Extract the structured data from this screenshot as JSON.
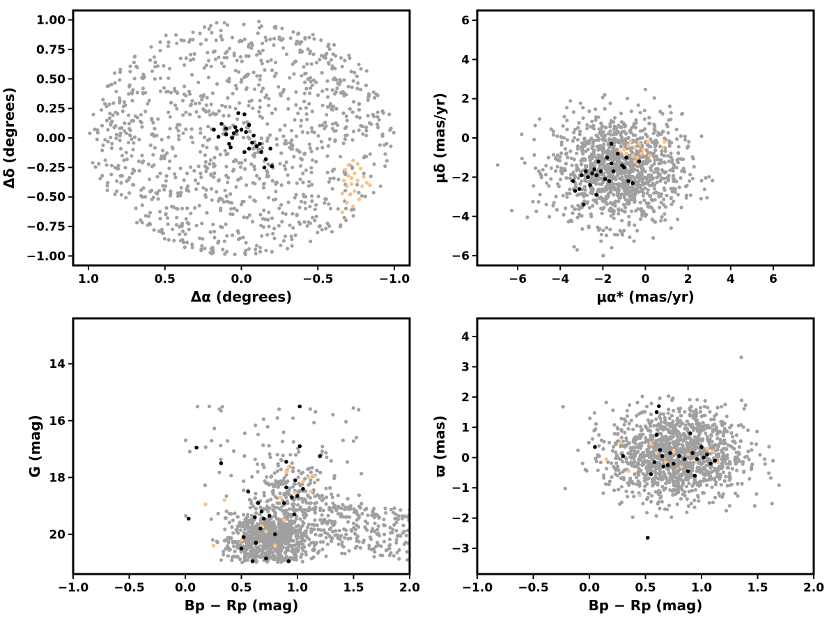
{
  "colors": {
    "field": "#a0a0a0",
    "members": "#000000",
    "group2": "#f9c48c",
    "frame": "#000000"
  },
  "chart_data": [
    {
      "id": "sky",
      "type": "scatter",
      "title": "",
      "xlabel": "Δα (degrees)",
      "ylabel": "Δδ (degrees)",
      "xlim": [
        1.1,
        -1.1
      ],
      "ylim": [
        -1.08,
        1.08
      ],
      "x_inverted": true,
      "xticks": [
        1.0,
        0.5,
        0.0,
        -0.5,
        -1.0
      ],
      "xtick_labels": [
        "1.0",
        "0.5",
        "0.0",
        "−0.5",
        "−1.0"
      ],
      "yticks": [
        -1.0,
        -0.75,
        -0.5,
        -0.25,
        0.0,
        0.25,
        0.5,
        0.75,
        1.0
      ],
      "ytick_labels": [
        "−1.00",
        "−0.75",
        "−0.50",
        "−0.25",
        "0.00",
        "0.25",
        "0.50",
        "0.75",
        "1.00"
      ],
      "grid": false,
      "field_distribution": {
        "shape": "disk",
        "center": [
          0,
          0
        ],
        "radius": 1.0,
        "n": 1100
      },
      "series": [
        {
          "role": "members",
          "points": [
            [
              0.18,
              0.07
            ],
            [
              0.15,
              0.01
            ],
            [
              0.13,
              0.12
            ],
            [
              0.1,
              0.08
            ],
            [
              0.1,
              0.03
            ],
            [
              0.08,
              -0.05
            ],
            [
              0.07,
              -0.08
            ],
            [
              0.06,
              0.0
            ],
            [
              0.05,
              0.04
            ],
            [
              0.04,
              0.09
            ],
            [
              0.03,
              0.06
            ],
            [
              0.02,
              0.21
            ],
            [
              0.0,
              0.07
            ],
            [
              -0.02,
              0.2
            ],
            [
              -0.02,
              -0.12
            ],
            [
              -0.03,
              0.05
            ],
            [
              -0.05,
              -0.09
            ],
            [
              -0.05,
              0.11
            ],
            [
              -0.07,
              -0.04
            ],
            [
              -0.08,
              0.02
            ],
            [
              -0.1,
              -0.07
            ],
            [
              -0.12,
              -0.05
            ],
            [
              -0.13,
              -0.12
            ],
            [
              -0.15,
              -0.25
            ],
            [
              -0.16,
              -0.18
            ],
            [
              -0.19,
              -0.09
            ],
            [
              -0.2,
              -0.24
            ]
          ]
        },
        {
          "role": "group2",
          "points": [
            [
              -0.66,
              -0.63
            ],
            [
              -0.66,
              -0.47
            ],
            [
              -0.67,
              -0.36
            ],
            [
              -0.68,
              -0.27
            ],
            [
              -0.69,
              -0.41
            ],
            [
              -0.69,
              -0.55
            ],
            [
              -0.7,
              -0.32
            ],
            [
              -0.7,
              -0.23
            ],
            [
              -0.71,
              -0.48
            ],
            [
              -0.72,
              -0.39
            ],
            [
              -0.73,
              -0.19
            ],
            [
              -0.73,
              -0.58
            ],
            [
              -0.74,
              -0.3
            ],
            [
              -0.74,
              -0.45
            ],
            [
              -0.76,
              -0.36
            ],
            [
              -0.77,
              -0.52
            ],
            [
              -0.78,
              -0.26
            ],
            [
              -0.79,
              -0.41
            ],
            [
              -0.8,
              -0.33
            ],
            [
              -0.82,
              -0.38
            ],
            [
              -0.84,
              -0.4
            ],
            [
              -0.76,
              -0.22
            ],
            [
              -0.72,
              -0.34
            ]
          ]
        }
      ]
    },
    {
      "id": "pm",
      "type": "scatter",
      "title": "",
      "xlabel": "μα* (mas/yr)",
      "ylabel": "μδ (mas/yr)",
      "xlim": [
        -7.9,
        7.9
      ],
      "ylim": [
        -6.5,
        6.5
      ],
      "xticks": [
        -6,
        -4,
        -2,
        0,
        2,
        4,
        6
      ],
      "xtick_labels": [
        "−6",
        "−4",
        "−2",
        "0",
        "2",
        "4",
        "6"
      ],
      "yticks": [
        -6,
        -4,
        -2,
        0,
        2,
        4,
        6
      ],
      "ytick_labels": [
        "−6",
        "−4",
        "−2",
        "0",
        "2",
        "4",
        "6"
      ],
      "grid": false,
      "field_distribution": {
        "shape": "blob",
        "center": [
          -1.3,
          -1.6
        ],
        "spread": [
          1.5,
          1.4
        ],
        "n": 1200
      },
      "series": [
        {
          "role": "members",
          "points": [
            [
              -3.4,
              -2.2
            ],
            [
              -3.3,
              -2.7
            ],
            [
              -3.1,
              -2.6
            ],
            [
              -3.0,
              -1.9
            ],
            [
              -2.9,
              -3.4
            ],
            [
              -2.8,
              -1.7
            ],
            [
              -2.7,
              -2.0
            ],
            [
              -2.6,
              -2.4
            ],
            [
              -2.5,
              -1.8
            ],
            [
              -2.4,
              -1.6
            ],
            [
              -2.3,
              -2.9
            ],
            [
              -2.3,
              -1.9
            ],
            [
              -2.2,
              -1.2
            ],
            [
              -2.1,
              -1.7
            ],
            [
              -1.9,
              -2.1
            ],
            [
              -1.8,
              -1.0
            ],
            [
              -1.7,
              -2.2
            ],
            [
              -1.6,
              -1.3
            ],
            [
              -1.6,
              -0.3
            ],
            [
              -1.5,
              -1.7
            ],
            [
              -1.3,
              -0.8
            ],
            [
              -1.1,
              -1.4
            ],
            [
              -1.0,
              -1.5
            ],
            [
              -0.8,
              -2.2
            ],
            [
              -0.6,
              -2.3
            ],
            [
              -0.3,
              -1.2
            ],
            [
              -0.9,
              -1.0
            ]
          ]
        },
        {
          "role": "group2",
          "points": [
            [
              -1.2,
              -0.7
            ],
            [
              -1.0,
              -0.6
            ],
            [
              -0.9,
              -0.8
            ],
            [
              -0.8,
              -0.4
            ],
            [
              -0.6,
              -0.9
            ],
            [
              -0.5,
              -0.5
            ],
            [
              -0.4,
              -1.0
            ],
            [
              -0.3,
              -0.3
            ],
            [
              -0.2,
              -0.8
            ],
            [
              -0.1,
              -0.6
            ],
            [
              0.1,
              -0.2
            ],
            [
              0.2,
              -0.9
            ],
            [
              0.8,
              -0.5
            ],
            [
              0.9,
              -0.2
            ],
            [
              -0.7,
              -0.2
            ],
            [
              -0.5,
              -1.2
            ]
          ]
        }
      ]
    },
    {
      "id": "cmd",
      "type": "scatter",
      "title": "",
      "xlabel": "Bp − Rp (mag)",
      "ylabel": "G (mag)",
      "xlim": [
        -1.0,
        2.0
      ],
      "ylim": [
        21.4,
        12.4
      ],
      "y_inverted": true,
      "xticks": [
        -1.0,
        -0.5,
        0.0,
        0.5,
        1.0,
        1.5,
        2.0
      ],
      "xtick_labels": [
        "−1.0",
        "−0.5",
        "0.0",
        "0.5",
        "1.0",
        "1.5",
        "2.0"
      ],
      "yticks": [
        14,
        16,
        18,
        20
      ],
      "ytick_labels": [
        "14",
        "16",
        "18",
        "20"
      ],
      "grid": false,
      "field_distribution": {
        "shape": "cmd",
        "center": [
          0.75,
          20.2
        ],
        "n": 1300
      },
      "series": [
        {
          "role": "members",
          "points": [
            [
              0.03,
              19.45
            ],
            [
              0.1,
              16.95
            ],
            [
              0.32,
              17.5
            ],
            [
              0.5,
              20.5
            ],
            [
              0.52,
              20.1
            ],
            [
              0.56,
              18.5
            ],
            [
              0.6,
              20.95
            ],
            [
              0.62,
              19.4
            ],
            [
              0.63,
              20.3
            ],
            [
              0.65,
              18.9
            ],
            [
              0.67,
              19.8
            ],
            [
              0.68,
              19.2
            ],
            [
              0.7,
              19.45
            ],
            [
              0.72,
              20.85
            ],
            [
              0.75,
              19.35
            ],
            [
              0.8,
              20.0
            ],
            [
              0.88,
              18.9
            ],
            [
              0.9,
              18.35
            ],
            [
              0.9,
              17.45
            ],
            [
              0.92,
              20.95
            ],
            [
              0.95,
              18.7
            ],
            [
              0.97,
              19.3
            ],
            [
              0.98,
              18.1
            ],
            [
              1.0,
              18.65
            ],
            [
              1.02,
              16.9
            ],
            [
              1.05,
              18.4
            ],
            [
              1.2,
              17.25
            ],
            [
              1.02,
              15.5
            ]
          ]
        },
        {
          "role": "group2",
          "points": [
            [
              0.18,
              18.95
            ],
            [
              0.35,
              18.8
            ],
            [
              0.5,
              20.2
            ],
            [
              0.58,
              20.9
            ],
            [
              0.65,
              20.35
            ],
            [
              0.72,
              19.9
            ],
            [
              0.8,
              20.4
            ],
            [
              0.85,
              18.7
            ],
            [
              0.88,
              19.5
            ],
            [
              0.9,
              17.8
            ],
            [
              0.92,
              17.65
            ],
            [
              0.98,
              18.55
            ],
            [
              1.05,
              18.15
            ],
            [
              1.1,
              18.0
            ],
            [
              1.12,
              18.5
            ],
            [
              1.15,
              17.95
            ],
            [
              0.68,
              19.7
            ],
            [
              0.25,
              20.4
            ]
          ]
        }
      ]
    },
    {
      "id": "parallax",
      "type": "scatter",
      "title": "",
      "xlabel": "Bp − Rp (mag)",
      "ylabel": "ϖ (mas)",
      "xlim": [
        -1.0,
        2.0
      ],
      "ylim": [
        -3.85,
        4.6
      ],
      "xticks": [
        -1.0,
        -0.5,
        0.0,
        0.5,
        1.0,
        1.5,
        2.0
      ],
      "xtick_labels": [
        "−1.0",
        "−0.5",
        "0.0",
        "0.5",
        "1.0",
        "1.5",
        "2.0"
      ],
      "yticks": [
        -3,
        -2,
        -1,
        0,
        1,
        2,
        3,
        4
      ],
      "ytick_labels": [
        "−3",
        "−2",
        "−1",
        "0",
        "1",
        "2",
        "3",
        "4"
      ],
      "grid": false,
      "field_distribution": {
        "shape": "blob",
        "center": [
          0.78,
          0.1
        ],
        "spread": [
          0.3,
          0.75
        ],
        "n": 1300
      },
      "series": [
        {
          "role": "members",
          "points": [
            [
              0.05,
              0.35
            ],
            [
              0.3,
              0.05
            ],
            [
              0.52,
              -2.65
            ],
            [
              0.55,
              -0.55
            ],
            [
              0.58,
              -0.15
            ],
            [
              0.6,
              0.75
            ],
            [
              0.6,
              1.5
            ],
            [
              0.62,
              1.7
            ],
            [
              0.63,
              0.25
            ],
            [
              0.65,
              0.05
            ],
            [
              0.66,
              -0.3
            ],
            [
              0.7,
              -0.25
            ],
            [
              0.72,
              0.15
            ],
            [
              0.75,
              -0.2
            ],
            [
              0.8,
              0.05
            ],
            [
              0.85,
              -0.05
            ],
            [
              0.88,
              -0.45
            ],
            [
              0.9,
              0.8
            ],
            [
              0.92,
              0.15
            ],
            [
              0.94,
              -0.6
            ],
            [
              0.96,
              -0.05
            ],
            [
              1.0,
              0.35
            ],
            [
              1.02,
              0.0
            ],
            [
              1.05,
              0.1
            ],
            [
              1.08,
              -0.2
            ],
            [
              1.12,
              -0.1
            ]
          ]
        },
        {
          "role": "group2",
          "points": [
            [
              0.15,
              -0.05
            ],
            [
              0.28,
              0.5
            ],
            [
              0.35,
              -0.45
            ],
            [
              0.45,
              -1.25
            ],
            [
              0.55,
              0.45
            ],
            [
              0.6,
              0.15
            ],
            [
              0.68,
              -0.15
            ],
            [
              0.75,
              0.2
            ],
            [
              0.82,
              -0.3
            ],
            [
              0.88,
              0.1
            ],
            [
              0.95,
              -0.1
            ],
            [
              1.05,
              0.3
            ],
            [
              1.1,
              0.2
            ],
            [
              1.15,
              -0.15
            ]
          ]
        }
      ]
    }
  ]
}
